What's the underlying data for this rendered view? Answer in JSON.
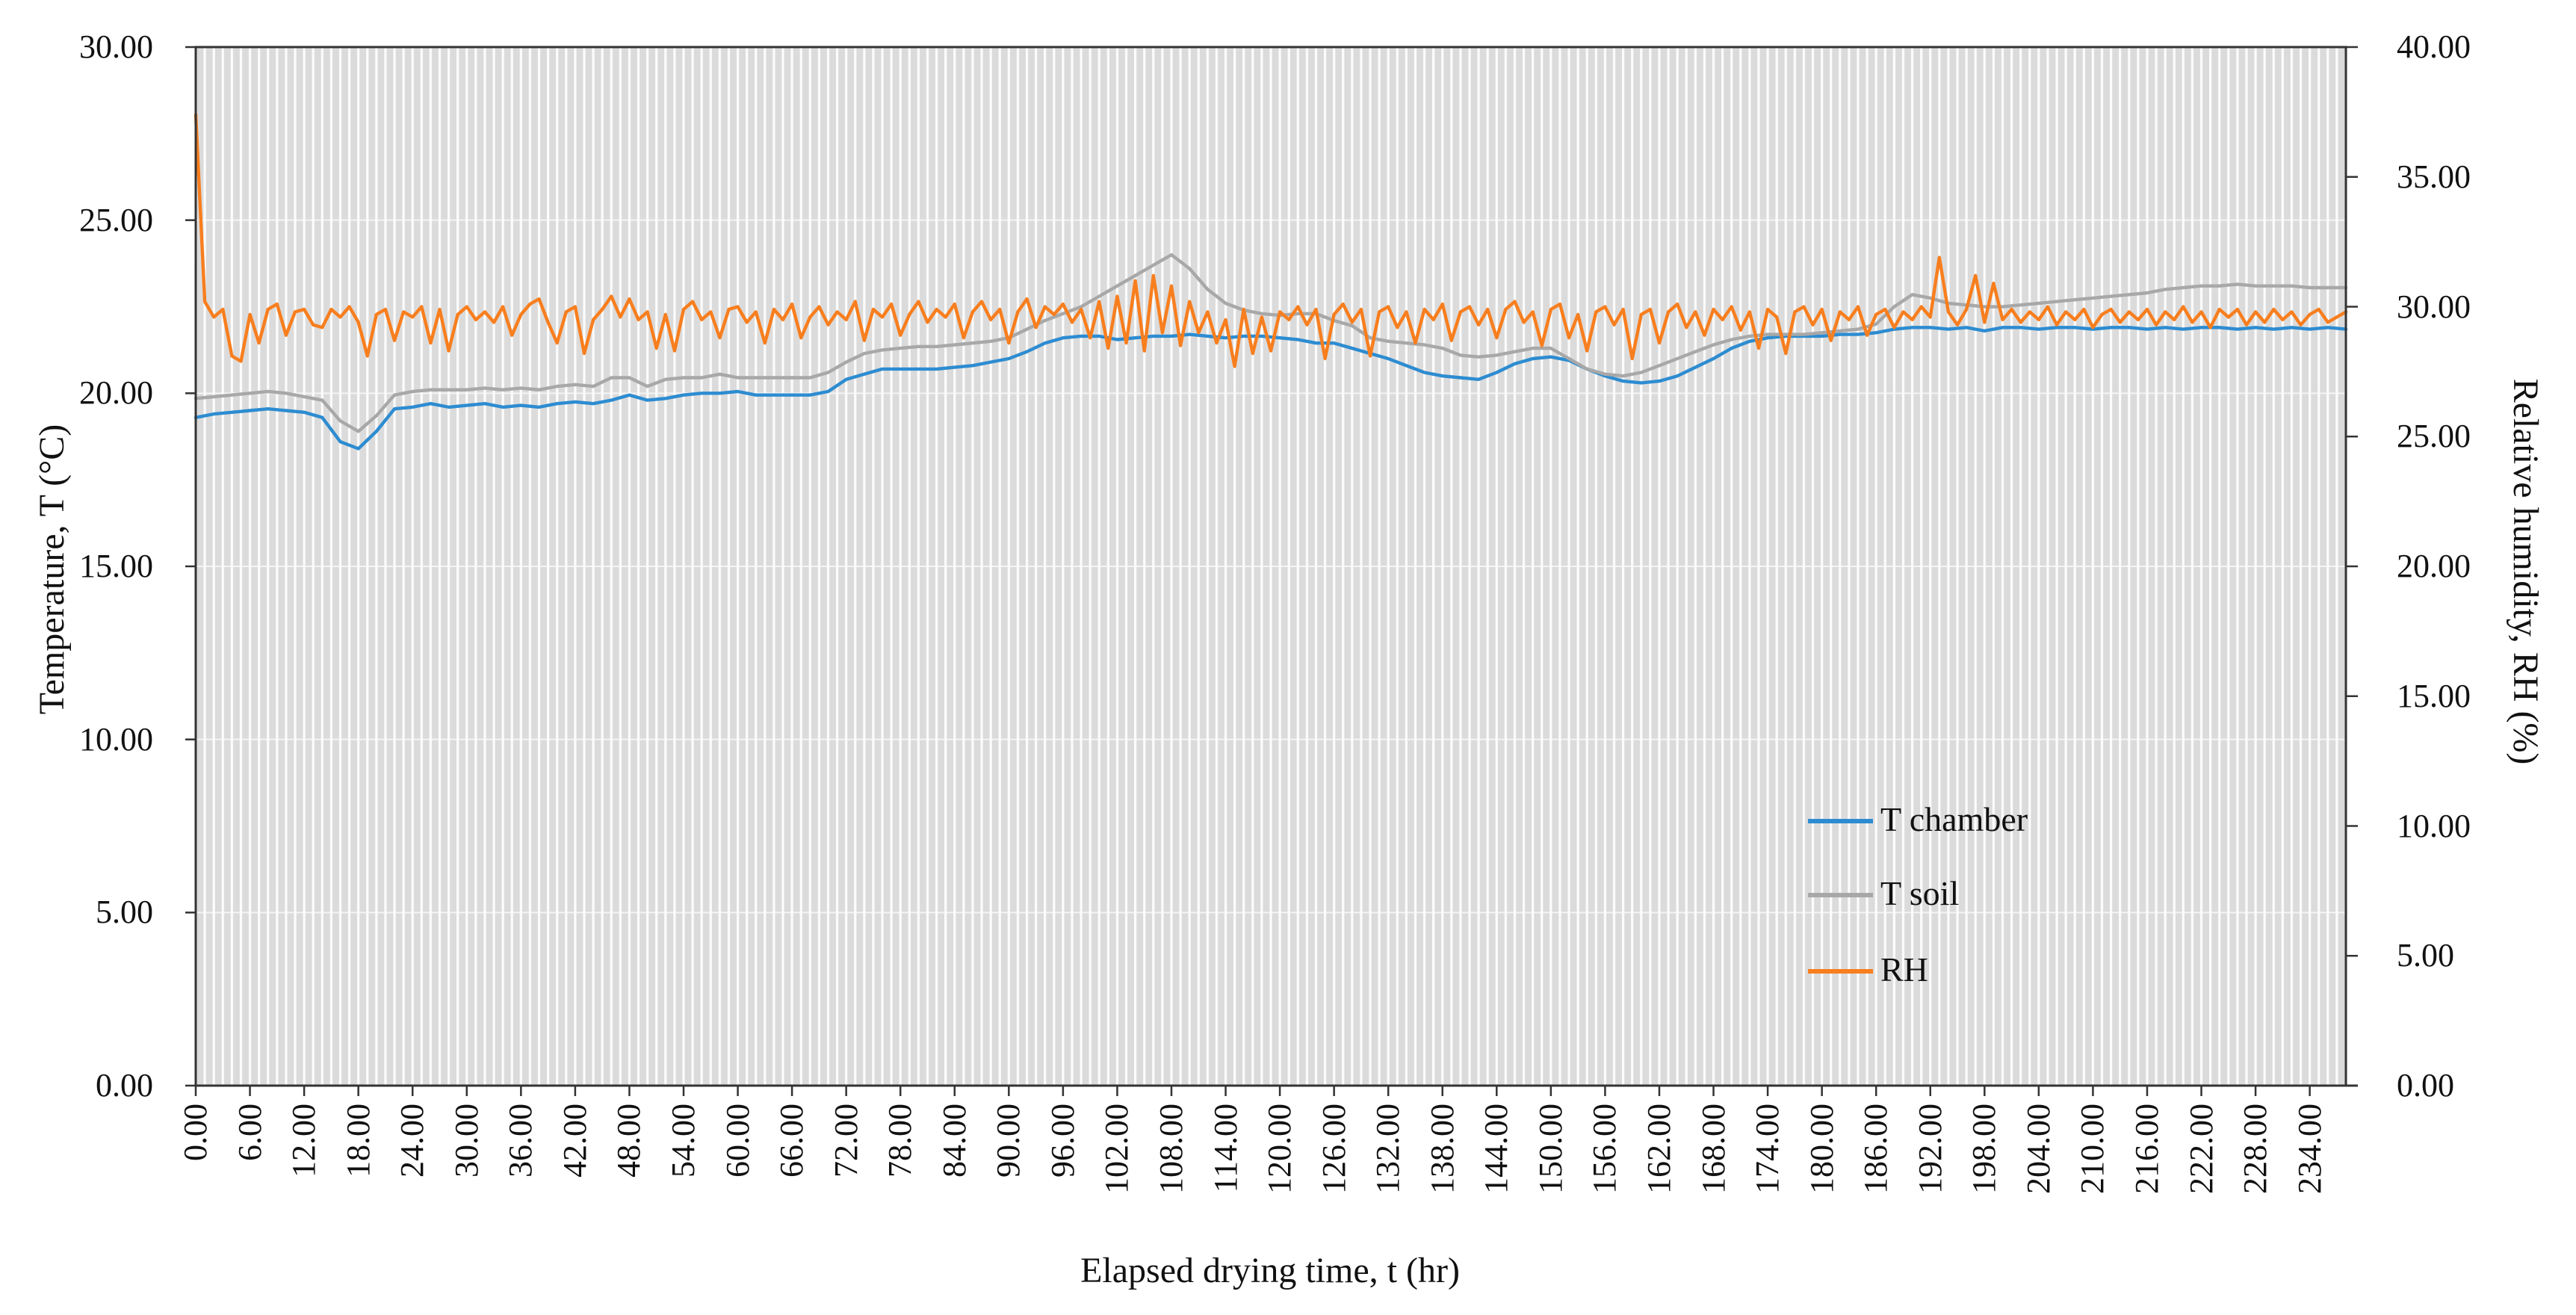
{
  "figure": {
    "left_axis": {
      "title": "Temperature, T (°C)",
      "min": 0,
      "max": 30,
      "step": 5,
      "tick_labels": [
        "0.00",
        "5.00",
        "10.00",
        "15.00",
        "20.00",
        "25.00",
        "30.00"
      ]
    },
    "right_axis": {
      "title": "Relative humidity, RH (%)",
      "min": 0,
      "max": 40,
      "step": 5,
      "tick_labels": [
        "0.00",
        "5.00",
        "10.00",
        "15.00",
        "20.00",
        "25.00",
        "30.00",
        "35.00",
        "40.00"
      ]
    },
    "x_axis": {
      "title": "Elapsed drying time, t (hr)",
      "tick_step_hr": 6,
      "max_hr": 238,
      "tick_labels": [
        "0.00",
        "6.00",
        "12.00",
        "18.00",
        "24.00",
        "30.00",
        "36.00",
        "42.00",
        "48.00",
        "54.00",
        "60.00",
        "66.00",
        "72.00",
        "78.00",
        "84.00",
        "90.00",
        "96.00",
        "102.00",
        "108.00",
        "114.00",
        "120.00",
        "126.00",
        "132.00",
        "138.00",
        "144.00",
        "150.00",
        "156.00",
        "162.00",
        "168.00",
        "174.00",
        "180.00",
        "186.00",
        "192.00",
        "198.00",
        "204.00",
        "210.00",
        "216.00",
        "222.00",
        "228.00",
        "234.00"
      ]
    }
  },
  "legend": {
    "position": "inside-lower-right",
    "entries": [
      "T chamber",
      "T soil",
      "RH"
    ]
  },
  "colors": {
    "plot_bg": "#DBDBDB",
    "grid_line": "#FCFCFC",
    "axis_line": "#333333",
    "text": "#111111",
    "t_chamber": "#2D8CD1",
    "t_soil": "#A8A8A8",
    "rh": "#F87E1E"
  },
  "chart_data": {
    "type": "line",
    "title": "",
    "xlabel": "Elapsed drying time, t (hr)",
    "ylabel_left": "Temperature, T (°C)",
    "ylabel_right": "Relative humidity, RH (%)",
    "x_range_hr": [
      0,
      238
    ],
    "ylim_left": [
      0,
      30
    ],
    "ylim_right": [
      0,
      40
    ],
    "grid": "dense vertical minor gridlines every 1 hr, faint horizontal gridlines every 5 units",
    "legend_position": "inside lower right",
    "series": [
      {
        "name": "T chamber",
        "axis": "left",
        "color": "#2D8CD1",
        "start_hr": 0,
        "step_hr": 2,
        "values": [
          19.3,
          19.4,
          19.45,
          19.5,
          19.55,
          19.5,
          19.45,
          19.3,
          18.6,
          18.4,
          18.9,
          19.55,
          19.6,
          19.7,
          19.6,
          19.65,
          19.7,
          19.6,
          19.65,
          19.6,
          19.7,
          19.75,
          19.7,
          19.8,
          19.95,
          19.8,
          19.85,
          19.95,
          20.0,
          20.0,
          20.05,
          19.95,
          19.95,
          19.95,
          19.95,
          20.05,
          20.4,
          20.55,
          20.7,
          20.7,
          20.7,
          20.7,
          20.75,
          20.8,
          20.9,
          21.0,
          21.2,
          21.45,
          21.6,
          21.65,
          21.65,
          21.55,
          21.6,
          21.65,
          21.65,
          21.7,
          21.65,
          21.6,
          21.65,
          21.65,
          21.6,
          21.55,
          21.45,
          21.45,
          21.3,
          21.15,
          21.0,
          20.8,
          20.6,
          20.5,
          20.45,
          20.4,
          20.6,
          20.85,
          21.0,
          21.05,
          20.95,
          20.7,
          20.5,
          20.35,
          20.3,
          20.35,
          20.5,
          20.75,
          21.0,
          21.3,
          21.5,
          21.6,
          21.65,
          21.65,
          21.65,
          21.7,
          21.7,
          21.75,
          21.85,
          21.9,
          21.9,
          21.85,
          21.9,
          21.8,
          21.9,
          21.9,
          21.85,
          21.9,
          21.9,
          21.85,
          21.9,
          21.9,
          21.85,
          21.9,
          21.85,
          21.9,
          21.9,
          21.85,
          21.9,
          21.85,
          21.9,
          21.85,
          21.9,
          21.85
        ]
      },
      {
        "name": "T soil",
        "axis": "left",
        "color": "#A8A8A8",
        "start_hr": 0,
        "step_hr": 2,
        "values": [
          19.85,
          19.9,
          19.95,
          20.0,
          20.05,
          20.0,
          19.9,
          19.8,
          19.2,
          18.9,
          19.35,
          19.95,
          20.05,
          20.1,
          20.1,
          20.1,
          20.15,
          20.1,
          20.15,
          20.1,
          20.2,
          20.25,
          20.2,
          20.45,
          20.45,
          20.2,
          20.4,
          20.45,
          20.45,
          20.55,
          20.45,
          20.45,
          20.45,
          20.45,
          20.45,
          20.6,
          20.9,
          21.15,
          21.25,
          21.3,
          21.35,
          21.35,
          21.4,
          21.45,
          21.5,
          21.6,
          21.85,
          22.1,
          22.3,
          22.5,
          22.8,
          23.1,
          23.4,
          23.7,
          24.0,
          23.6,
          23.0,
          22.6,
          22.4,
          22.3,
          22.25,
          22.3,
          22.3,
          22.1,
          21.95,
          21.6,
          21.5,
          21.45,
          21.4,
          21.3,
          21.1,
          21.05,
          21.1,
          21.2,
          21.3,
          21.3,
          21.0,
          20.7,
          20.55,
          20.5,
          20.6,
          20.8,
          21.0,
          21.2,
          21.4,
          21.55,
          21.65,
          21.7,
          21.7,
          21.7,
          21.75,
          21.8,
          21.85,
          22.0,
          22.5,
          22.85,
          22.75,
          22.6,
          22.55,
          22.5,
          22.5,
          22.55,
          22.6,
          22.65,
          22.7,
          22.75,
          22.8,
          22.85,
          22.9,
          23.0,
          23.05,
          23.1,
          23.1,
          23.15,
          23.1,
          23.1,
          23.1,
          23.05,
          23.05,
          23.05
        ]
      },
      {
        "name": "RH",
        "axis": "right",
        "color": "#F87E1E",
        "start_hr": 0,
        "step_hr": 1,
        "values": [
          37.4,
          30.2,
          29.6,
          29.9,
          28.1,
          27.9,
          29.7,
          28.6,
          29.9,
          30.1,
          28.9,
          29.8,
          29.9,
          29.3,
          29.2,
          29.9,
          29.6,
          30.0,
          29.4,
          28.1,
          29.7,
          29.9,
          28.7,
          29.8,
          29.6,
          30.0,
          28.6,
          29.9,
          28.3,
          29.7,
          30.0,
          29.5,
          29.8,
          29.4,
          30.0,
          28.9,
          29.7,
          30.1,
          30.3,
          29.4,
          28.6,
          29.8,
          30.0,
          28.2,
          29.5,
          29.9,
          30.4,
          29.6,
          30.3,
          29.5,
          29.8,
          28.4,
          29.7,
          28.3,
          29.9,
          30.2,
          29.5,
          29.8,
          28.8,
          29.9,
          30.0,
          29.4,
          29.8,
          28.6,
          29.9,
          29.5,
          30.1,
          28.8,
          29.6,
          30.0,
          29.3,
          29.8,
          29.5,
          30.2,
          28.7,
          29.9,
          29.6,
          30.1,
          28.9,
          29.7,
          30.2,
          29.4,
          29.9,
          29.6,
          30.1,
          28.8,
          29.8,
          30.2,
          29.5,
          29.9,
          28.6,
          29.8,
          30.3,
          29.2,
          30.0,
          29.7,
          30.1,
          29.4,
          29.9,
          28.8,
          30.2,
          28.4,
          30.4,
          28.6,
          31.0,
          28.3,
          31.2,
          29.0,
          30.8,
          28.5,
          30.2,
          29.0,
          29.8,
          28.6,
          29.5,
          27.7,
          29.9,
          28.2,
          29.6,
          28.3,
          29.8,
          29.5,
          30.0,
          29.3,
          29.9,
          28.0,
          29.7,
          30.1,
          29.4,
          29.9,
          28.1,
          29.8,
          30.0,
          29.2,
          29.8,
          28.6,
          29.9,
          29.5,
          30.1,
          28.7,
          29.8,
          30.0,
          29.3,
          29.9,
          28.8,
          29.9,
          30.2,
          29.4,
          29.8,
          28.5,
          29.9,
          30.1,
          28.8,
          29.7,
          28.3,
          29.8,
          30.0,
          29.3,
          29.9,
          28.0,
          29.7,
          29.9,
          28.6,
          29.8,
          30.1,
          29.2,
          29.8,
          28.9,
          29.9,
          29.5,
          30.0,
          29.1,
          29.8,
          28.4,
          29.9,
          29.6,
          28.2,
          29.8,
          30.0,
          29.3,
          29.9,
          28.7,
          29.8,
          29.5,
          30.0,
          28.9,
          29.7,
          29.9,
          29.2,
          29.8,
          29.5,
          30.0,
          29.6,
          31.9,
          29.8,
          29.3,
          29.9,
          31.2,
          29.4,
          30.9,
          29.5,
          29.9,
          29.4,
          29.8,
          29.5,
          30.0,
          29.3,
          29.8,
          29.5,
          29.9,
          29.2,
          29.7,
          29.9,
          29.4,
          29.8,
          29.5,
          29.9,
          29.3,
          29.8,
          29.5,
          30.0,
          29.4,
          29.8,
          29.2,
          29.9,
          29.6,
          29.9,
          29.3,
          29.8,
          29.4,
          29.9,
          29.5,
          29.8,
          29.3,
          29.7,
          29.9,
          29.4,
          29.6,
          29.8
        ]
      }
    ]
  }
}
